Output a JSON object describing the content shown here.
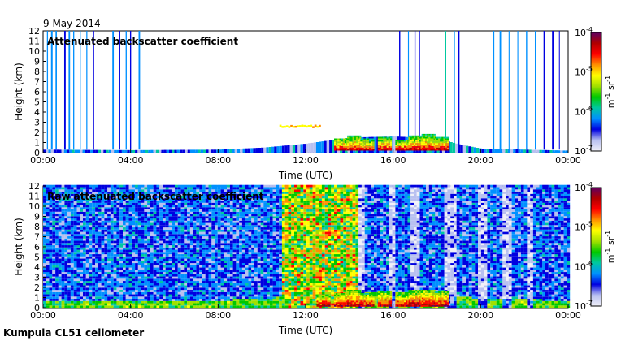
{
  "date_label": "9 May 2014",
  "footer": "Kumpula CL51 ceilometer",
  "colormap_stops": [
    "#f0f0f8",
    "#b8c0f0",
    "#0000e0",
    "#0090ff",
    "#00c8a0",
    "#00c800",
    "#a0e000",
    "#ffff00",
    "#ff9000",
    "#ff0000",
    "#b00000",
    "#600060"
  ],
  "chart_data": [
    {
      "type": "heatmap",
      "title": "Attenuated backscatter coefficient",
      "xlabel": "Time (UTC)",
      "ylabel": "Height (km)",
      "xlim": [
        0,
        24
      ],
      "ylim": [
        0,
        12
      ],
      "xticks": [
        "00:00",
        "04:00",
        "08:00",
        "12:00",
        "16:00",
        "20:00",
        "00:00"
      ],
      "yticks": [
        "0",
        "1",
        "2",
        "3",
        "4",
        "5",
        "6",
        "7",
        "8",
        "9",
        "10",
        "11",
        "12"
      ],
      "colorbar": {
        "unit_base": "m",
        "unit_exp_1": "-1",
        "unit_base_2": "sr",
        "unit_exp_2": "-1",
        "ticks": [
          "-7",
          "-6",
          "-5",
          "-4"
        ],
        "range_exp": [
          -7,
          -4
        ]
      },
      "features": {
        "boundary_layer": [
          [
            0,
            0.3
          ],
          [
            4,
            0.25
          ],
          [
            8,
            0.3
          ],
          [
            10,
            0.5
          ],
          [
            11,
            0.7
          ],
          [
            12,
            0.9
          ],
          [
            13,
            1.2
          ],
          [
            14,
            1.5
          ],
          [
            16,
            1.6
          ],
          [
            18,
            1.4
          ],
          [
            19,
            0.8
          ],
          [
            20,
            0.4
          ],
          [
            24,
            0.2
          ]
        ],
        "elevated_layer": {
          "x": [
            10.8,
            12.6
          ],
          "y": 2.5,
          "level": -5.0
        },
        "clouds": [
          [
            13.6,
            1.4
          ],
          [
            14.2,
            1.6
          ],
          [
            14.8,
            1.3
          ],
          [
            15.6,
            1.5
          ],
          [
            16.4,
            1.2
          ],
          [
            17.0,
            1.6
          ],
          [
            17.6,
            1.7
          ],
          [
            18.2,
            1.5
          ]
        ],
        "streaks": [
          0.2,
          0.4,
          0.6,
          1.0,
          1.2,
          1.4,
          1.7,
          2.0,
          2.3,
          3.2,
          3.5,
          3.8,
          4.0,
          4.4,
          16.3,
          16.7,
          17.0,
          17.2,
          18.4,
          18.8,
          19.0,
          20.6,
          20.9,
          21.3,
          21.7,
          22.1,
          22.5,
          22.9,
          23.3,
          23.6
        ]
      }
    },
    {
      "type": "heatmap",
      "title": "Raw attenuated backscatter coefficient",
      "xlabel": "Time (UTC)",
      "ylabel": "Height (km)",
      "xlim": [
        0,
        24
      ],
      "ylim": [
        0,
        12
      ],
      "xticks": [
        "00:00",
        "04:00",
        "08:00",
        "12:00",
        "16:00",
        "20:00",
        "00:00"
      ],
      "yticks": [
        "0",
        "1",
        "2",
        "3",
        "4",
        "5",
        "6",
        "7",
        "8",
        "9",
        "10",
        "11",
        "12"
      ],
      "colorbar": {
        "unit_base": "m",
        "unit_exp_1": "-1",
        "unit_base_2": "sr",
        "unit_exp_2": "-1",
        "ticks": [
          "-7",
          "-6",
          "-5",
          "-4"
        ],
        "range_exp": [
          -7,
          -4
        ]
      },
      "features": {
        "noisy_daytime": {
          "x": [
            10.9,
            14.3
          ],
          "level": -5.3
        },
        "boundary_layer": [
          [
            0,
            0.5
          ],
          [
            4,
            0.5
          ],
          [
            8,
            0.6
          ],
          [
            10,
            0.8
          ],
          [
            11,
            1.0
          ],
          [
            12,
            1.2
          ],
          [
            13,
            1.5
          ],
          [
            14,
            1.6
          ],
          [
            16,
            1.4
          ],
          [
            18,
            1.2
          ],
          [
            20,
            0.8
          ],
          [
            24,
            0.6
          ]
        ],
        "clouds": [
          [
            12.8,
            1.2
          ],
          [
            13.6,
            1.4
          ],
          [
            14.2,
            1.6
          ],
          [
            14.8,
            1.3
          ],
          [
            15.6,
            1.5
          ],
          [
            16.4,
            1.2
          ],
          [
            17.0,
            1.6
          ],
          [
            17.6,
            1.7
          ],
          [
            18.2,
            1.5
          ]
        ],
        "clear_columns": [
          [
            14.3,
            14.6
          ],
          [
            15.8,
            16.1
          ],
          [
            16.8,
            17.1
          ],
          [
            18.3,
            18.8
          ],
          [
            19.8,
            20.2
          ],
          [
            21.0,
            21.3
          ],
          [
            22.0,
            22.4
          ]
        ]
      }
    }
  ]
}
